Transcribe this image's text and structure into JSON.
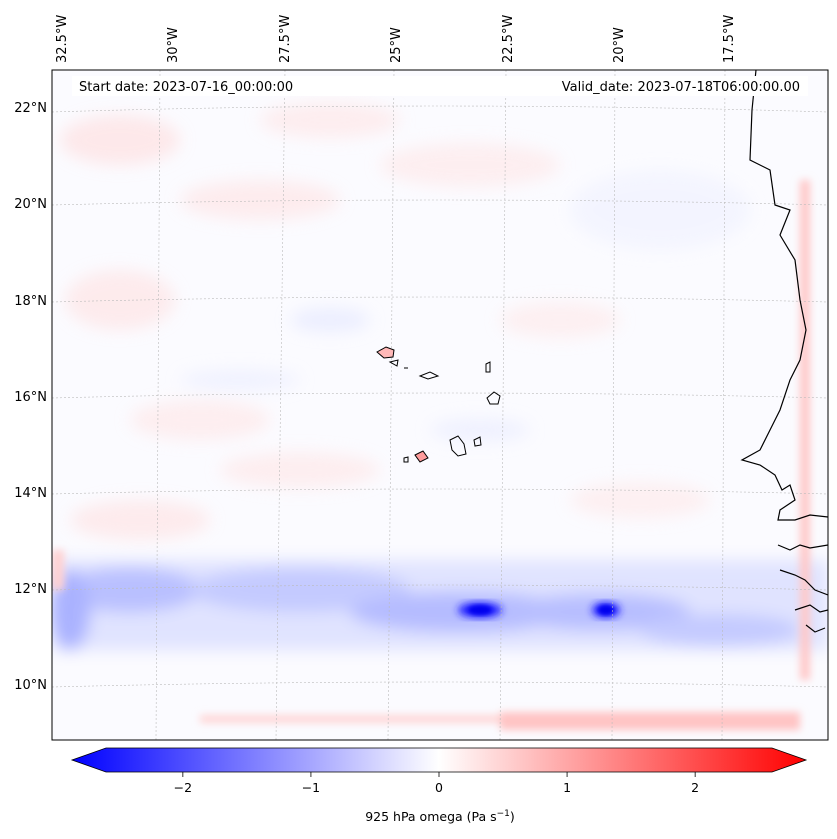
{
  "map": {
    "start_date": "Start date: 2023-07-16_00:00:00",
    "valid_date": "Valid_date: 2023-07-18T06:00:00.00",
    "lon_labels": [
      "32.5°W",
      "30°W",
      "27.5°W",
      "25°W",
      "22.5°W",
      "20°W",
      "17.5°W"
    ],
    "lat_labels": [
      "22°N",
      "20°N",
      "18°N",
      "16°N",
      "14°N",
      "12°N",
      "10°N"
    ],
    "colorbar": {
      "ticks": [
        "−2",
        "−1",
        "0",
        "1",
        "2"
      ],
      "tick_values": [
        -2,
        -1,
        0,
        1,
        2
      ],
      "range": [
        -2.6,
        2.6
      ],
      "label_main": "925 hPa omega (Pa s",
      "label_exp": "−1",
      "label_close": ")",
      "colormap": "bwr",
      "min_color": "#0000ff",
      "mid_color": "#ffffff",
      "max_color": "#ff0000",
      "extend": "both"
    }
  }
}
